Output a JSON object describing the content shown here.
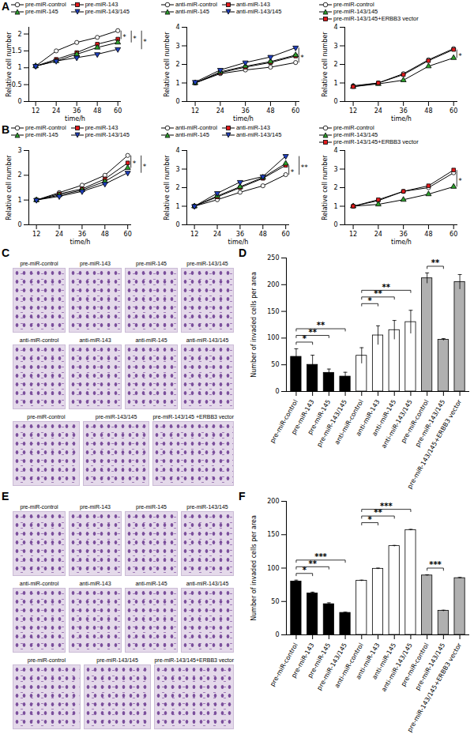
{
  "chart_data": [
    {
      "panel": "A",
      "type": "line",
      "xlabel": "time/h",
      "ylabel": "Relative cell number",
      "x": [
        12,
        24,
        36,
        48,
        60
      ],
      "xlim": [
        8,
        62
      ],
      "xticks": [
        12,
        24,
        36,
        48,
        60
      ],
      "ylim": [
        0,
        2.2
      ],
      "yticks": [
        0,
        0.5,
        1,
        1.5,
        2
      ],
      "series": [
        {
          "name": "pre-miR-control",
          "color": "#ffffff",
          "marker": "circle",
          "values": [
            1.05,
            1.5,
            1.75,
            1.9,
            2.1
          ]
        },
        {
          "name": "pre-miR-143",
          "color": "#e41a1c",
          "marker": "square",
          "values": [
            1.05,
            1.25,
            1.45,
            1.7,
            1.85
          ]
        },
        {
          "name": "pre-miR-145",
          "color": "#2ca02c",
          "marker": "triangle",
          "values": [
            1.05,
            1.2,
            1.4,
            1.6,
            1.75
          ]
        },
        {
          "name": "pre-miR-143/145",
          "color": "#1f3fbf",
          "marker": "triangle-down",
          "values": [
            1.05,
            1.2,
            1.3,
            1.4,
            1.55
          ]
        }
      ],
      "significance": [
        {
          "label": "*",
          "between": [
            "pre-miR-control",
            "pre-miR-143"
          ]
        },
        {
          "label": "*",
          "between": [
            "pre-miR-control",
            "pre-miR-145"
          ]
        },
        {
          "label": "*",
          "between": [
            "pre-miR-control",
            "pre-miR-143/145"
          ]
        }
      ]
    },
    {
      "panel": "A",
      "type": "line",
      "xlabel": "time/h",
      "ylabel": "Relative cell number",
      "x": [
        12,
        24,
        36,
        48,
        60
      ],
      "xlim": [
        8,
        62
      ],
      "xticks": [
        12,
        24,
        36,
        48,
        60
      ],
      "ylim": [
        0,
        4
      ],
      "yticks": [
        0,
        1,
        2,
        3,
        4
      ],
      "series": [
        {
          "name": "anti-miR-control",
          "color": "#ffffff",
          "marker": "circle",
          "values": [
            1.0,
            1.5,
            1.7,
            1.85,
            2.1
          ]
        },
        {
          "name": "anti-miR-143",
          "color": "#e41a1c",
          "marker": "square",
          "values": [
            1.0,
            1.55,
            1.85,
            2.1,
            2.45
          ]
        },
        {
          "name": "anti-miR-145",
          "color": "#2ca02c",
          "marker": "triangle",
          "values": [
            1.0,
            1.6,
            1.9,
            2.15,
            2.5
          ]
        },
        {
          "name": "anti-miR-143/145",
          "color": "#1f3fbf",
          "marker": "triangle-down",
          "values": [
            1.05,
            1.7,
            2.1,
            2.4,
            2.9
          ]
        }
      ],
      "significance": [
        {
          "label": "*",
          "between": [
            "anti-miR-control",
            "anti-miR-143/145"
          ]
        }
      ]
    },
    {
      "panel": "A",
      "type": "line",
      "xlabel": "time/h",
      "ylabel": "Relative cell number",
      "x": [
        12,
        24,
        36,
        48,
        60
      ],
      "xlim": [
        8,
        62
      ],
      "xticks": [
        12,
        24,
        36,
        48,
        60
      ],
      "ylim": [
        0,
        4
      ],
      "yticks": [
        0,
        1,
        2,
        3,
        4
      ],
      "series": [
        {
          "name": "pre-miR-control",
          "color": "#ffffff",
          "marker": "circle",
          "values": [
            0.85,
            1.0,
            1.5,
            2.25,
            2.85
          ]
        },
        {
          "name": "pre-miR-143/145",
          "color": "#2ca02c",
          "marker": "triangle",
          "values": [
            0.8,
            0.95,
            1.15,
            1.9,
            2.35
          ]
        },
        {
          "name": "pre-miR-143/145+ERBB3 vector",
          "color": "#e41a1c",
          "marker": "square",
          "values": [
            0.8,
            1.0,
            1.45,
            2.2,
            2.8
          ]
        }
      ],
      "significance": [
        {
          "label": "*",
          "between": [
            "pre-miR-143/145+ERBB3 vector",
            "pre-miR-143/145"
          ]
        }
      ]
    },
    {
      "panel": "B",
      "type": "line",
      "xlabel": "time/h",
      "ylabel": "Relative cell number",
      "x": [
        12,
        24,
        36,
        48,
        60
      ],
      "xlim": [
        8,
        62
      ],
      "xticks": [
        12,
        24,
        36,
        48,
        60
      ],
      "ylim": [
        0,
        3
      ],
      "yticks": [
        0,
        1,
        2,
        3
      ],
      "series": [
        {
          "name": "pre-miR-control",
          "color": "#ffffff",
          "marker": "circle",
          "values": [
            1.0,
            1.3,
            1.6,
            2.0,
            2.8
          ]
        },
        {
          "name": "pre-miR-143",
          "color": "#e41a1c",
          "marker": "square",
          "values": [
            1.0,
            1.25,
            1.45,
            1.85,
            2.5
          ]
        },
        {
          "name": "pre-miR-145",
          "color": "#2ca02c",
          "marker": "triangle",
          "values": [
            1.0,
            1.2,
            1.4,
            1.75,
            2.3
          ]
        },
        {
          "name": "pre-miR-143/145",
          "color": "#1f3fbf",
          "marker": "triangle-down",
          "values": [
            1.0,
            1.15,
            1.35,
            1.65,
            2.1
          ]
        }
      ],
      "significance": [
        {
          "label": "*",
          "between": [
            "pre-miR-control",
            "pre-miR-145"
          ]
        },
        {
          "label": "*",
          "between": [
            "pre-miR-control",
            "pre-miR-143/145"
          ]
        }
      ]
    },
    {
      "panel": "B",
      "type": "line",
      "xlabel": "time/h",
      "ylabel": "Relative cell number",
      "x": [
        12,
        24,
        36,
        48,
        60
      ],
      "xlim": [
        8,
        62
      ],
      "xticks": [
        12,
        24,
        36,
        48,
        60
      ],
      "ylim": [
        0,
        4
      ],
      "yticks": [
        0,
        1,
        2,
        3,
        4
      ],
      "series": [
        {
          "name": "anti-miR-control",
          "color": "#ffffff",
          "marker": "circle",
          "values": [
            1.0,
            1.35,
            1.75,
            2.1,
            2.7
          ]
        },
        {
          "name": "anti-miR-143",
          "color": "#e41a1c",
          "marker": "square",
          "values": [
            1.0,
            1.5,
            2.0,
            2.5,
            3.2
          ]
        },
        {
          "name": "anti-miR-145",
          "color": "#2ca02c",
          "marker": "triangle",
          "values": [
            1.0,
            1.55,
            2.05,
            2.55,
            3.3
          ]
        },
        {
          "name": "anti-miR-143/145",
          "color": "#1f3fbf",
          "marker": "triangle-down",
          "values": [
            1.0,
            1.7,
            2.3,
            2.6,
            3.7
          ]
        }
      ],
      "significance": [
        {
          "label": "*",
          "between": [
            "anti-miR-control",
            "anti-miR-143"
          ]
        },
        {
          "label": "**",
          "between": [
            "anti-miR-control",
            "anti-miR-143/145"
          ]
        }
      ]
    },
    {
      "panel": "B",
      "type": "line",
      "xlabel": "time/h",
      "ylabel": "Relative cell number",
      "x": [
        12,
        24,
        36,
        48,
        60
      ],
      "xlim": [
        8,
        62
      ],
      "xticks": [
        12,
        24,
        36,
        48,
        60
      ],
      "ylim": [
        0,
        4
      ],
      "yticks": [
        0,
        1,
        2,
        3,
        4
      ],
      "series": [
        {
          "name": "pre-miR-control",
          "color": "#ffffff",
          "marker": "circle",
          "values": [
            1.0,
            1.3,
            1.8,
            2.0,
            2.8
          ]
        },
        {
          "name": "pre-miR-143/145",
          "color": "#2ca02c",
          "marker": "triangle",
          "values": [
            1.0,
            1.1,
            1.35,
            1.65,
            2.05
          ]
        },
        {
          "name": "pre-miR-143/145+ERBB3 vector",
          "color": "#e41a1c",
          "marker": "square",
          "values": [
            1.0,
            1.35,
            1.8,
            2.1,
            2.95
          ]
        }
      ],
      "significance": [
        {
          "label": "*",
          "between": [
            "pre-miR-143/145+ERBB3 vector",
            "pre-miR-143/145"
          ]
        }
      ]
    },
    {
      "panel": "D",
      "type": "bar",
      "ylabel": "Number of invaded cells per area",
      "categories": [
        "pre-miR-control",
        "pre-miR-143",
        "pre-miR-145",
        "pre-miR-143/145",
        "anti-miR-control",
        "anti-miR-143",
        "anti-miR-145",
        "anti-miR-143/145",
        "pre-miR-control",
        "pre-miR-143/145",
        "pre-miR-143/145+ERBB3 vector"
      ],
      "values": [
        65,
        50,
        35,
        28,
        67,
        105,
        115,
        130,
        212,
        97,
        205
      ],
      "errors": [
        15,
        18,
        7,
        8,
        15,
        18,
        18,
        22,
        10,
        2,
        14
      ],
      "colors": [
        "#000000",
        "#000000",
        "#000000",
        "#000000",
        "#ffffff",
        "#ffffff",
        "#ffffff",
        "#ffffff",
        "#b0b0b0",
        "#b0b0b0",
        "#b0b0b0"
      ],
      "ylim": [
        0,
        250
      ],
      "yticks": [
        0,
        50,
        100,
        150,
        200,
        250
      ],
      "significance": [
        {
          "label": "*",
          "between": [
            0,
            1
          ]
        },
        {
          "label": "**",
          "between": [
            0,
            2
          ]
        },
        {
          "label": "**",
          "between": [
            0,
            3
          ]
        },
        {
          "label": "*",
          "between": [
            4,
            5
          ]
        },
        {
          "label": "**",
          "between": [
            4,
            6
          ]
        },
        {
          "label": "**",
          "between": [
            4,
            7
          ]
        },
        {
          "label": "**",
          "between": [
            8,
            9
          ]
        }
      ]
    },
    {
      "panel": "F",
      "type": "bar",
      "ylabel": "Number of invaded cells per area",
      "categories": [
        "pre-miR-control",
        "pre-miR-143",
        "pre-miR-145",
        "pre-miR-143/145",
        "anti-miR-control",
        "anti-miR-143",
        "anti-miR-145",
        "anti-miR-143/145",
        "pre-miR-control",
        "pre-miR-143/145",
        "pre-miR-143/145+ERBB3 vector"
      ],
      "values": [
        80,
        62,
        46,
        33,
        81,
        99,
        133,
        157,
        89,
        36,
        85
      ],
      "errors": [
        2,
        2,
        2,
        1,
        1,
        1,
        1,
        1,
        1,
        1,
        1
      ],
      "colors": [
        "#000000",
        "#000000",
        "#000000",
        "#000000",
        "#ffffff",
        "#ffffff",
        "#ffffff",
        "#ffffff",
        "#b0b0b0",
        "#b0b0b0",
        "#b0b0b0"
      ],
      "ylim": [
        0,
        200
      ],
      "yticks": [
        0,
        50,
        100,
        150,
        200
      ],
      "significance": [
        {
          "label": "*",
          "between": [
            0,
            1
          ]
        },
        {
          "label": "**",
          "between": [
            0,
            2
          ]
        },
        {
          "label": "***",
          "between": [
            0,
            3
          ]
        },
        {
          "label": "*",
          "between": [
            4,
            5
          ]
        },
        {
          "label": "**",
          "between": [
            4,
            6
          ]
        },
        {
          "label": "***",
          "between": [
            4,
            7
          ]
        },
        {
          "label": "***",
          "between": [
            8,
            9
          ]
        }
      ]
    }
  ],
  "image_panels": [
    {
      "panel": "C",
      "rows": [
        [
          "pre-miR-control",
          "pre-miR-143",
          "pre-miR-145",
          "pre-miR-143/145"
        ],
        [
          "anti-miR-control",
          "anti-miR-143",
          "anti-miR-145",
          "anti-miR-143/145"
        ],
        [
          "pre-miR-control",
          "pre-miR-143/145",
          "pre-miR-143/145 +ERBB3 vector"
        ]
      ]
    },
    {
      "panel": "E",
      "rows": [
        [
          "pre-miR-control",
          "pre-miR-143",
          "pre-miR-145",
          "pre-miR-143/145"
        ],
        [
          "anti-miR-control",
          "anti-miR-143",
          "anti-miR-145",
          "anti-miR-143/145"
        ],
        [
          "pre-miR-control",
          "pre-miR-143/145",
          "pre-miR-143/145+ERBB3 vector"
        ]
      ]
    }
  ]
}
